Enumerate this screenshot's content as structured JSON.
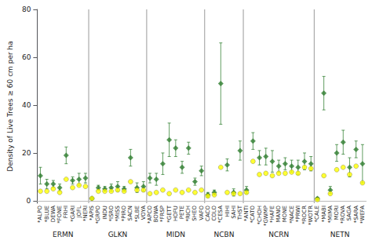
{
  "chart_data": {
    "type": "scatter",
    "ylabel": "Density of Live Trees ≥ 60 cm per ha",
    "categories": [
      "*ALPO",
      "*BLUE",
      "DEWA",
      "*FONE",
      "FRHI",
      "*GARI",
      "JOFL",
      "*NERI",
      "*APIS",
      "*GRPO",
      "INDU",
      "*ISRO",
      "*MISS",
      "*PIRO",
      "SACN",
      "*SLBE",
      "VOYA",
      "*APCO",
      "BOWA",
      "*FRSP",
      "*GETT",
      "HOFU",
      "PETE",
      "*RICH",
      "SHEO",
      "VAFO",
      "CACO",
      "COLO",
      "*CESA",
      "HIHI",
      "SAHI",
      "THST",
      "*ANTI",
      "*CATO",
      "*CHOH",
      "*GWMP",
      "*HAFE",
      "MANO",
      "MONE",
      "*NACE",
      "*PRWI",
      "*ROCR",
      "*WOTR",
      "*CALE",
      "*MABI",
      "*MIMA",
      "MORI",
      "*ROVA",
      "SAGA",
      "*SARA",
      "*WEFA"
    ],
    "groups": [
      "ERMN",
      "ERMN",
      "ERMN",
      "ERMN",
      "ERMN",
      "ERMN",
      "ERMN",
      "ERMN",
      "GLKN",
      "GLKN",
      "GLKN",
      "GLKN",
      "GLKN",
      "GLKN",
      "GLKN",
      "GLKN",
      "GLKN",
      "MIDN",
      "MIDN",
      "MIDN",
      "MIDN",
      "MIDN",
      "MIDN",
      "MIDN",
      "MIDN",
      "MIDN",
      "NCBN",
      "NCBN",
      "NCBN",
      "NCBN",
      "NCBN",
      "NCBN",
      "NCRN",
      "NCRN",
      "NCRN",
      "NCRN",
      "NCRN",
      "NCRN",
      "NCRN",
      "NCRN",
      "NCRN",
      "NCRN",
      "NCRN",
      "NETN",
      "NETN",
      "NETN",
      "NETN",
      "NETN",
      "NETN",
      "NETN",
      "NETN"
    ],
    "series": [
      {
        "color": "#2e7d2e",
        "marker": "diamond",
        "values": [
          10.5,
          7.0,
          7.0,
          5.5,
          19.0,
          8.5,
          9.0,
          9.5,
          1.0,
          5.5,
          5.0,
          5.5,
          6.0,
          5.0,
          18.0,
          5.5,
          6.0,
          9.5,
          9.0,
          15.5,
          25.5,
          22.0,
          14.0,
          22.0,
          8.0,
          12.5,
          2.5,
          3.5,
          49.0,
          15.0,
          3.5,
          21.0,
          4.5,
          25.0,
          18.0,
          18.5,
          16.5,
          14.5,
          15.5,
          14.5,
          14.0,
          16.5,
          15.5,
          1.0,
          45.0,
          4.5,
          20.0,
          24.5,
          14.0,
          21.5,
          15.5
        ],
        "errors": [
          3.5,
          2.0,
          1.5,
          1.5,
          3.5,
          1.5,
          2.5,
          2.0,
          0.5,
          1.0,
          1.0,
          1.5,
          2.0,
          1.0,
          3.5,
          2.0,
          2.0,
          2.0,
          2.5,
          4.5,
          7.0,
          3.5,
          2.5,
          2.5,
          1.5,
          2.0,
          1.0,
          1.0,
          17.0,
          2.5,
          1.5,
          4.0,
          1.5,
          3.5,
          3.0,
          3.5,
          4.5,
          2.5,
          2.5,
          2.5,
          3.0,
          3.5,
          3.0,
          0.5,
          7.0,
          1.5,
          3.5,
          5.0,
          4.0,
          3.5,
          8.0
        ]
      },
      {
        "color": "#ffff00",
        "marker": "circle",
        "values": [
          4.0,
          4.0,
          5.0,
          3.5,
          9.0,
          5.5,
          6.5,
          6.0,
          1.0,
          4.0,
          4.0,
          4.0,
          4.5,
          4.0,
          8.0,
          4.5,
          4.5,
          3.0,
          3.5,
          4.5,
          3.0,
          4.5,
          3.5,
          4.5,
          3.5,
          4.5,
          2.0,
          2.5,
          14.0,
          3.5,
          3.0,
          3.0,
          3.5,
          16.5,
          11.0,
          11.5,
          10.5,
          11.5,
          11.5,
          12.0,
          11.5,
          14.0,
          13.5,
          0.5,
          10.5,
          3.0,
          13.0,
          14.0,
          11.0,
          14.5,
          7.5
        ]
      }
    ],
    "hlines": [
      0
    ],
    "ylim": [
      -1,
      80
    ],
    "yticks": [
      0,
      20,
      40,
      60,
      80
    ],
    "grid": false
  }
}
